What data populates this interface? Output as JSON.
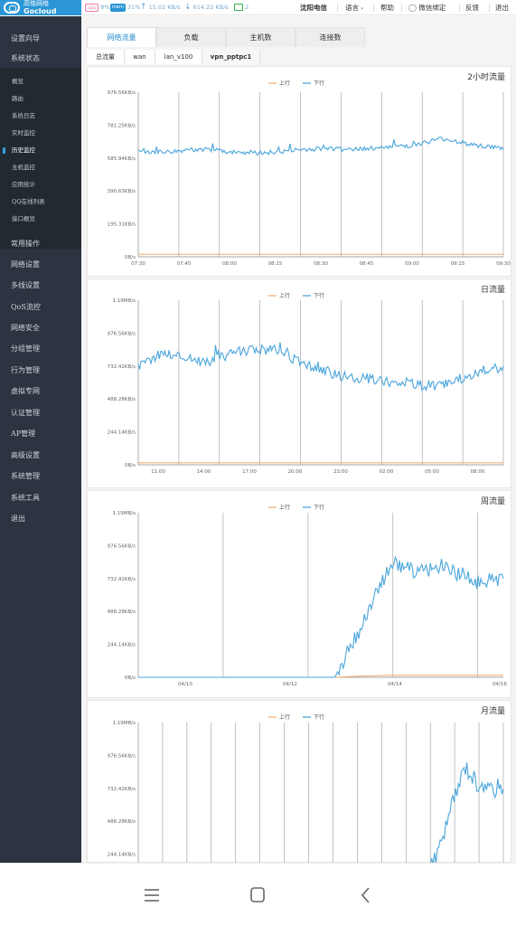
{
  "brand": {
    "cn": "高恪网络",
    "en": "Gocloud"
  },
  "topbar": {
    "cpu_badge": "cpu",
    "cpu_value": "8%",
    "mem_badge": "mem",
    "mem_value": "31%",
    "up_speed": "15.02 KB/s",
    "down_speed": "614.22 KB/s",
    "devices": "2",
    "isp": "沈阳电信",
    "language": "语言",
    "help": "帮助",
    "wechat": "微信绑定",
    "feedback": "反馈",
    "logout": "退出"
  },
  "sidebar": {
    "items_top": [
      "设置向导",
      "系统状态"
    ],
    "submenu": [
      "概览",
      "路由",
      "系统日志",
      "实时监控",
      "历史监控",
      "主机监控",
      "应用统计",
      "QQ在线列表",
      "接口概览"
    ],
    "active_sub": "历史监控",
    "items_bottom": [
      "常用操作",
      "网络设置",
      "多线设置",
      "QoS流控",
      "网络安全",
      "分组管理",
      "行为管理",
      "虚拟专网",
      "认证管理",
      "AP管理",
      "高级设置",
      "系统管理",
      "系统工具",
      "退出"
    ]
  },
  "tabs": [
    "网络流量",
    "负载",
    "主机数",
    "连接数"
  ],
  "active_tab": "网络流量",
  "subtabs": [
    "总流量",
    "wan",
    "lan_v100",
    "vpn_pptpc1"
  ],
  "active_subtab": "vpn_pptpc1",
  "colors": {
    "up": "#f0b07a",
    "down": "#4aa5dc",
    "grid": "#888888",
    "accent": "#2a8ed0"
  },
  "chart_data": [
    {
      "type": "line",
      "title": "2小时流量",
      "legend": [
        "上行",
        "下行"
      ],
      "y_ticks": [
        "976.56KB/s",
        "781.25KB/s",
        "585.94KB/s",
        "390.63KB/s",
        "195.31KB/s",
        "0B/s"
      ],
      "x_ticks": [
        "07:30",
        "07:45",
        "08:00",
        "08:15",
        "08:30",
        "08:45",
        "09:00",
        "09:15",
        "09:30"
      ],
      "series": [
        {
          "name": "上行",
          "values": [
            15,
            15,
            15,
            15,
            15,
            15,
            15,
            15,
            15,
            15,
            15,
            15,
            15
          ]
        },
        {
          "name": "下行",
          "values": [
            630,
            620,
            640,
            625,
            615,
            630,
            640,
            635,
            650,
            660,
            700,
            665,
            640
          ]
        }
      ]
    },
    {
      "type": "line",
      "title": "日流量",
      "legend": [
        "上行",
        "下行"
      ],
      "y_ticks": [
        "1.19MB/s",
        "976.56KB/s",
        "732.42KB/s",
        "488.28KB/s",
        "244.14KB/s",
        "0B/s"
      ],
      "x_ticks": [
        "11:00",
        "14:00",
        "17:00",
        "20:00",
        "23:00",
        "02:00",
        "05:00",
        "08:00"
      ],
      "series": [
        {
          "name": "上行",
          "values": [
            15,
            15,
            15,
            15,
            15,
            15,
            15,
            15,
            15,
            15,
            15,
            15,
            15,
            15,
            15,
            15,
            15
          ]
        },
        {
          "name": "下行",
          "values": [
            720,
            830,
            800,
            760,
            820,
            860,
            850,
            760,
            700,
            660,
            640,
            620,
            600,
            580,
            620,
            700,
            720
          ]
        }
      ]
    },
    {
      "type": "line",
      "title": "周流量",
      "legend": [
        "上行",
        "下行"
      ],
      "y_ticks": [
        "1.19MB/s",
        "976.56KB/s",
        "732.42KB/s",
        "488.28KB/s",
        "244.14KB/s",
        "0B/s"
      ],
      "x_ticks": [
        "04/10",
        "04/12",
        "04/14",
        "04/16"
      ],
      "series": [
        {
          "name": "上行",
          "values": [
            0,
            0,
            0,
            0,
            0,
            0,
            0,
            0,
            10,
            15,
            15,
            15,
            15,
            15
          ]
        },
        {
          "name": "下行",
          "values": [
            0,
            0,
            0,
            0,
            0,
            0,
            0,
            0,
            400,
            850,
            780,
            820,
            700,
            740
          ]
        }
      ]
    },
    {
      "type": "line",
      "title": "月流量",
      "legend": [
        "上行",
        "下行"
      ],
      "y_ticks": [
        "1.19MB/s",
        "976.56KB/s",
        "732.42KB/s",
        "488.28KB/s",
        "244.14KB/s"
      ],
      "series": [
        {
          "name": "下行",
          "values": [
            0,
            0,
            0,
            0,
            0,
            0,
            0,
            0,
            0,
            0,
            0,
            0,
            0,
            0,
            0,
            0,
            450,
            900,
            700,
            760
          ]
        }
      ]
    }
  ]
}
